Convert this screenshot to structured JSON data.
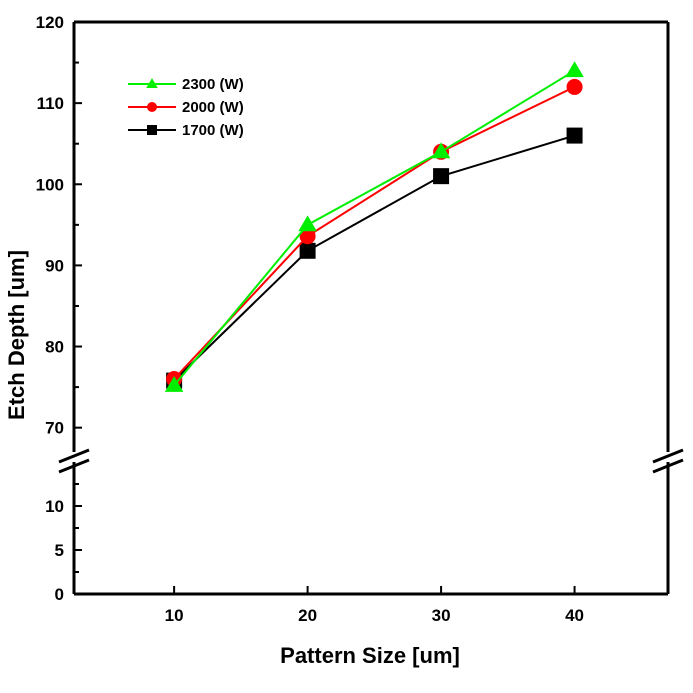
{
  "chart_data": {
    "type": "line",
    "xlabel": "Pattern Size [um]",
    "ylabel": "Etch Depth [um]",
    "x": [
      10,
      20,
      30,
      40
    ],
    "xlim": [
      2.5,
      47
    ],
    "xticks": [
      "10",
      "20",
      "30",
      "40"
    ],
    "y_broken_axis": true,
    "ylim_lower": [
      0,
      15
    ],
    "ylim_upper": [
      67,
      120
    ],
    "yticks_lower": [
      "0",
      "5",
      "10"
    ],
    "yticks_upper": [
      "70",
      "80",
      "90",
      "100",
      "110",
      "120"
    ],
    "grid": false,
    "legend_position": "top-left",
    "series": [
      {
        "name": "2300 (W)",
        "values": [
          75.2,
          95.0,
          104.0,
          114.0
        ],
        "color": "#00ee00",
        "marker": "triangle"
      },
      {
        "name": "2000 (W)",
        "values": [
          76.0,
          93.6,
          104.0,
          112.0
        ],
        "color": "#ff0000",
        "marker": "circle"
      },
      {
        "name": "1700 (W)",
        "values": [
          75.8,
          91.8,
          101.0,
          106.0
        ],
        "color": "#000000",
        "marker": "square"
      }
    ]
  }
}
